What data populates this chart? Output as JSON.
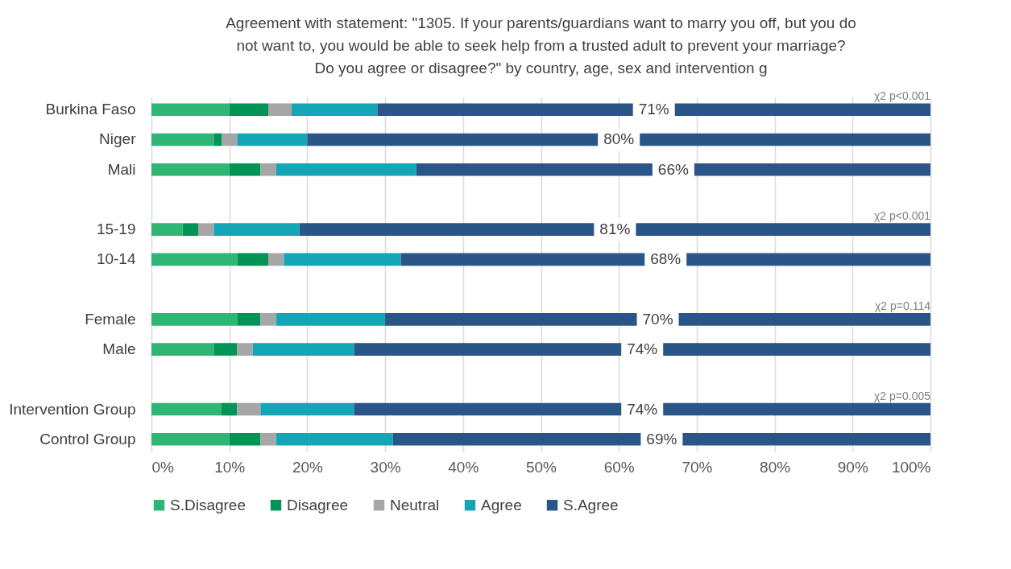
{
  "chart_data": {
    "type": "bar",
    "orientation": "horizontal",
    "stacked": true,
    "title": "Agreement with statement: \"1305. If your parents/guardians want to marry you off, but you do not want to, you would be able to seek help from a trusted adult to prevent your marriage? Do you agree or disagree?\" by country, age, sex and intervention g",
    "categories": [
      "Burkina Faso",
      "Niger",
      "Mali",
      null,
      "15-19",
      "10-14",
      null,
      "Female",
      "Male",
      null,
      "Intervention Group",
      "Control Group"
    ],
    "series": [
      {
        "name": "S.Disagree",
        "color": "#2fb574",
        "values": [
          10,
          8,
          10,
          null,
          4,
          11,
          null,
          11,
          8,
          null,
          9,
          10
        ]
      },
      {
        "name": "Disagree",
        "color": "#009456",
        "values": [
          5,
          1,
          4,
          null,
          2,
          4,
          null,
          3,
          3,
          null,
          2,
          4
        ]
      },
      {
        "name": "Neutral",
        "color": "#a6a6a6",
        "values": [
          3,
          2,
          2,
          null,
          2,
          2,
          null,
          2,
          2,
          null,
          3,
          2
        ]
      },
      {
        "name": "Agree",
        "color": "#14a6b7",
        "values": [
          11,
          9,
          18,
          null,
          11,
          15,
          null,
          14,
          13,
          null,
          12,
          15
        ]
      },
      {
        "name": "S.Agree",
        "color": "#2a5589",
        "values": [
          71,
          80,
          66,
          null,
          81,
          68,
          null,
          70,
          74,
          null,
          74,
          69
        ],
        "value_labels": [
          "71%",
          "80%",
          "66%",
          null,
          "81%",
          "68%",
          null,
          "70%",
          "74%",
          null,
          "74%",
          "69%"
        ]
      }
    ],
    "xlim": [
      0,
      100
    ],
    "xticks": [
      {
        "value": 0,
        "label": "0%"
      },
      {
        "value": 10,
        "label": "10%"
      },
      {
        "value": 20,
        "label": "20%"
      },
      {
        "value": 30,
        "label": "30%"
      },
      {
        "value": 40,
        "label": "40%"
      },
      {
        "value": 50,
        "label": "50%"
      },
      {
        "value": 60,
        "label": "60%"
      },
      {
        "value": 70,
        "label": "70%"
      },
      {
        "value": 80,
        "label": "80%"
      },
      {
        "value": 90,
        "label": "90%"
      },
      {
        "value": 100,
        "label": "100%"
      }
    ],
    "annotations": [
      "χ2 p<0.001",
      "χ2 p<0.001",
      "χ2 p=0.114",
      "χ2 p=0.005"
    ],
    "grid": "x",
    "legend": "bottom"
  }
}
